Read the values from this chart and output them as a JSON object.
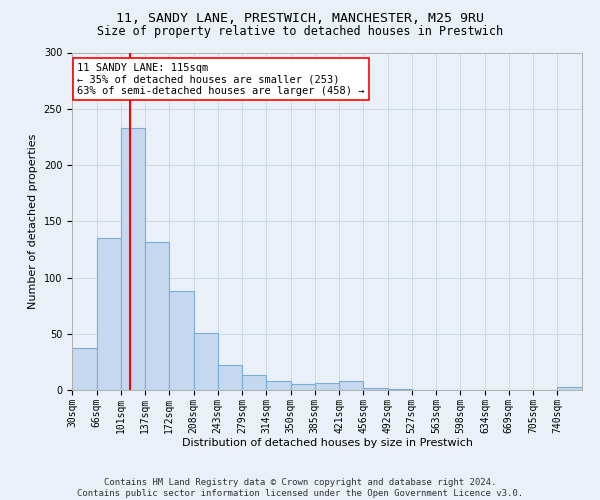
{
  "title_line1": "11, SANDY LANE, PRESTWICH, MANCHESTER, M25 9RU",
  "title_line2": "Size of property relative to detached houses in Prestwich",
  "xlabel": "Distribution of detached houses by size in Prestwich",
  "ylabel": "Number of detached properties",
  "bin_labels": [
    "30sqm",
    "66sqm",
    "101sqm",
    "137sqm",
    "172sqm",
    "208sqm",
    "243sqm",
    "279sqm",
    "314sqm",
    "350sqm",
    "385sqm",
    "421sqm",
    "456sqm",
    "492sqm",
    "527sqm",
    "563sqm",
    "598sqm",
    "634sqm",
    "669sqm",
    "705sqm",
    "740sqm"
  ],
  "bin_edges": [
    30,
    66,
    101,
    137,
    172,
    208,
    243,
    279,
    314,
    350,
    385,
    421,
    456,
    492,
    527,
    563,
    598,
    634,
    669,
    705,
    740,
    776
  ],
  "bar_heights": [
    37,
    135,
    233,
    132,
    88,
    51,
    22,
    13,
    8,
    5,
    6,
    8,
    2,
    1,
    0,
    0,
    0,
    0,
    0,
    0,
    3
  ],
  "bar_color": "#c5d8f0",
  "bar_edgecolor": "#7aadd4",
  "bar_linewidth": 0.8,
  "vline_x": 115,
  "vline_color": "red",
  "vline_linewidth": 1.5,
  "annotation_text": "11 SANDY LANE: 115sqm\n← 35% of detached houses are smaller (253)\n63% of semi-detached houses are larger (458) →",
  "annotation_box_edgecolor": "red",
  "annotation_box_facecolor": "white",
  "annotation_fontsize": 7.5,
  "ylim": [
    0,
    300
  ],
  "yticks": [
    0,
    50,
    100,
    150,
    200,
    250,
    300
  ],
  "grid_color": "#b0c4de",
  "grid_alpha": 0.6,
  "bg_color": "#eaf0f8",
  "footer_line1": "Contains HM Land Registry data © Crown copyright and database right 2024.",
  "footer_line2": "Contains public sector information licensed under the Open Government Licence v3.0.",
  "title_fontsize": 9.5,
  "subtitle_fontsize": 8.5,
  "axis_label_fontsize": 8,
  "tick_fontsize": 7,
  "footer_fontsize": 6.5
}
